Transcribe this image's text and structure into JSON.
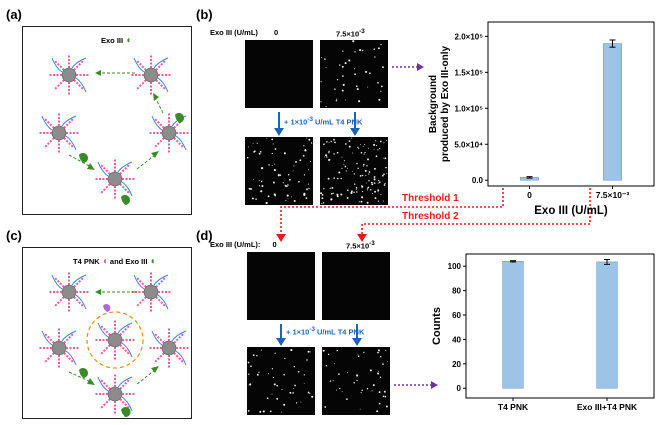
{
  "panels": {
    "a": {
      "label": "(a)",
      "box_title": "Exo III"
    },
    "b": {
      "label": "(b)",
      "exo_header": "Exo III (U/mL)",
      "col0": "0",
      "col1": "7.5×10",
      "col1_exp": "-3",
      "pnk_note": "+ 1×10",
      "pnk_note_exp": "-3",
      "pnk_note_tail": " U/mL T4 PNK"
    },
    "c": {
      "label": "(c)",
      "box_title_pre": "T4 PNK",
      "box_title_mid": " and Exo III"
    },
    "d": {
      "label": "(d)",
      "exo_header": "Exo III (U/mL):",
      "col0": "0",
      "col1": "7.5×10",
      "col1_exp": "-3",
      "pnk_note": "+ 1×10",
      "pnk_note_exp": "-3",
      "pnk_note_tail": " U/mL T4 PNK"
    }
  },
  "thresholds": {
    "t1": "Threshold 1",
    "t2": "Threshold 2"
  },
  "colors": {
    "bar": "#9dc3e6",
    "bar_edge": "#6c9bd0",
    "red": "#e02020",
    "blue": "#1e64b4",
    "purple": "#7030a0",
    "green": "#3a8a2a"
  },
  "chart_data": [
    {
      "type": "bar",
      "categories": [
        "0",
        "7.5×10⁻³"
      ],
      "values": [
        4000,
        190000
      ],
      "errors": [
        1000,
        5000
      ],
      "ylim": [
        -8000,
        220000
      ],
      "yticks": [
        "0.0",
        "5.0×10⁴",
        "1.0×10⁵",
        "1.5×10⁵",
        "2.0×10⁵"
      ],
      "ytick_values": [
        0,
        50000,
        100000,
        150000,
        200000
      ],
      "xlabel": "Exo III (U/mL)",
      "ylabel_line1": "Background",
      "ylabel_line2": "produced by Exo III-only",
      "grid": false
    },
    {
      "type": "bar",
      "categories": [
        "T4 PNK",
        "Exo III+T4 PNK"
      ],
      "values": [
        104,
        103.5
      ],
      "errors": [
        0.5,
        2
      ],
      "ylim": [
        -8,
        110
      ],
      "yticks": [
        "0",
        "20",
        "40",
        "60",
        "80",
        "100"
      ],
      "ytick_values": [
        0,
        20,
        40,
        60,
        80,
        100
      ],
      "xlabel": "",
      "ylabel": "Counts",
      "grid": false
    }
  ]
}
